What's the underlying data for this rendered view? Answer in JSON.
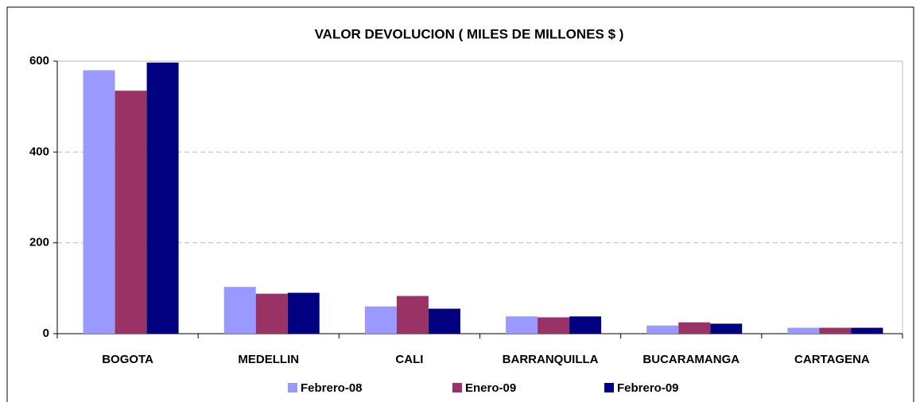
{
  "chart_data": {
    "type": "bar",
    "title": "VALOR DEVOLUCION ( MILES DE MILLONES $ )",
    "categories": [
      "BOGOTA",
      "MEDELLIN",
      "CALI",
      "BARRANQUILLA",
      "BUCARAMANGA",
      "CARTAGENA"
    ],
    "series": [
      {
        "name": "Febrero-08",
        "color": "#9999ff",
        "values": [
          580,
          103,
          60,
          38,
          18,
          13
        ]
      },
      {
        "name": "Enero-09",
        "color": "#993366",
        "values": [
          535,
          88,
          83,
          36,
          25,
          13
        ]
      },
      {
        "name": "Febrero-09",
        "color": "#000080",
        "values": [
          597,
          90,
          55,
          38,
          22,
          13
        ]
      }
    ],
    "ylim": [
      0,
      600
    ],
    "yticks": [
      0,
      200,
      400,
      600
    ],
    "grid": true,
    "legend": "bottom"
  }
}
